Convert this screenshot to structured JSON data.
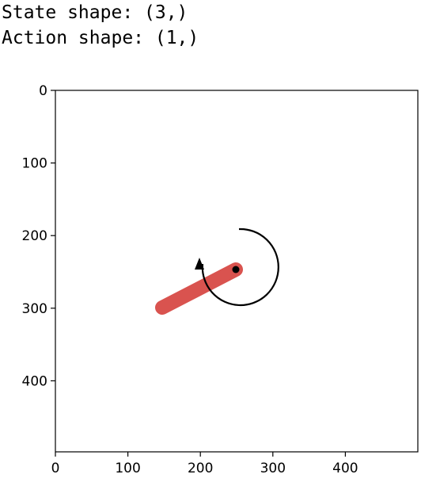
{
  "output": {
    "line1": "State shape: (3,)",
    "line2": "Action shape: (1,)"
  },
  "plot": {
    "x_ticks": [
      "0",
      "100",
      "200",
      "300",
      "400"
    ],
    "y_ticks": [
      "0",
      "100",
      "200",
      "300",
      "400"
    ],
    "x_range": [
      0,
      500
    ],
    "y_range": [
      0,
      500
    ],
    "y_inverted": true,
    "grid": false,
    "colors": {
      "pole": "#d9534f",
      "pivot": "#000000",
      "arrow": "#000000",
      "frame": "#000000",
      "background": "#ffffff"
    }
  }
}
